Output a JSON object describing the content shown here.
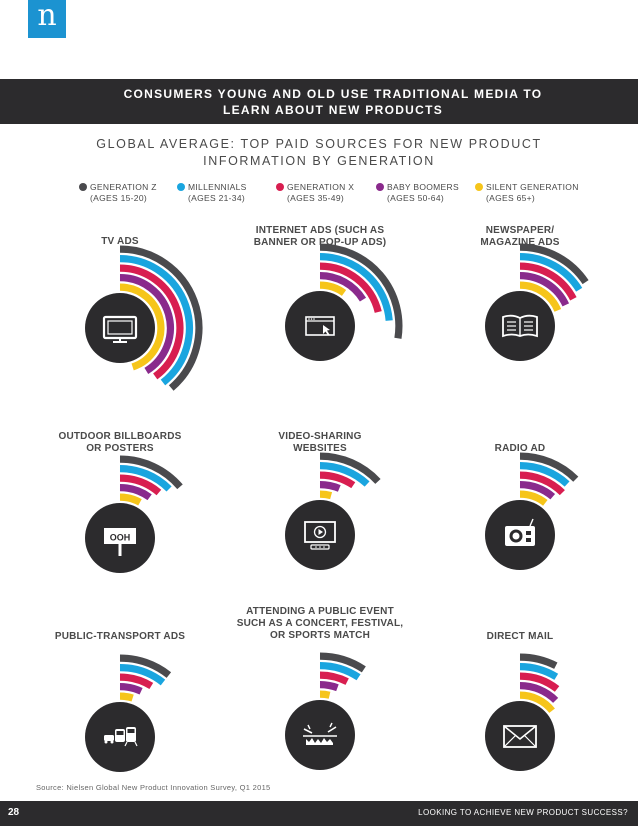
{
  "logo": "n",
  "title_lines": [
    "CONSUMERS YOUNG AND OLD USE TRADITIONAL MEDIA TO",
    "LEARN ABOUT NEW PRODUCTS"
  ],
  "subtitle_lines": [
    "GLOBAL AVERAGE: TOP PAID SOURCES FOR NEW PRODUCT",
    "INFORMATION BY GENERATION"
  ],
  "legend": [
    {
      "line1": "GENERATION Z",
      "line2": "(AGES 15-20)",
      "color": "#4a4a4d"
    },
    {
      "line1": "MILLENNIALS",
      "line2": "(AGES 21-34)",
      "color": "#1aa5df"
    },
    {
      "line1": "GENERATION X",
      "line2": "(AGES 35-49)",
      "color": "#d81e50"
    },
    {
      "line1": "BABY BOOMERS",
      "line2": "(AGES 50-64)",
      "color": "#8a2a8c"
    },
    {
      "line1": "SILENT GENERATION",
      "line2": "(AGES 65+)",
      "color": "#f6c51a"
    }
  ],
  "chart_data": {
    "type": "radial-bar",
    "series": [
      "GENERATION Z (AGES 15-20)",
      "MILLENNIALS (AGES 21-34)",
      "GENERATION X (AGES 35-49)",
      "BABY BOOMERS (AGES 50-64)",
      "SILENT GENERATION (AGES 65+)"
    ],
    "categories": [
      {
        "label": [
          "TV ADS"
        ],
        "icon": "tv-icon",
        "values": [
          0.62,
          0.63,
          0.64,
          0.66,
          0.72
        ]
      },
      {
        "label": [
          "INTERNET ADS (SUCH AS",
          "BANNER OR POP-UP ADS)"
        ],
        "icon": "browser-icon",
        "values": [
          0.44,
          0.38,
          0.34,
          0.26,
          0.16
        ]
      },
      {
        "label": [
          "NEWSPAPER/",
          "MAGAZINE ADS"
        ],
        "icon": "newspaper-icon",
        "values": [
          0.25,
          0.26,
          0.28,
          0.29,
          0.3
        ]
      },
      {
        "label": [
          "OUTDOOR BILLBOARDS",
          "OR POSTERS"
        ],
        "icon": "billboard-icon",
        "values": [
          0.22,
          0.2,
          0.18,
          0.16,
          0.13
        ]
      },
      {
        "label": [
          "VIDEO-SHARING",
          "WEBSITES"
        ],
        "icon": "video-icon",
        "values": [
          0.21,
          0.19,
          0.15,
          0.1,
          0.07
        ]
      },
      {
        "label": [
          "RADIO AD"
        ],
        "icon": "radio-icon",
        "values": [
          0.2,
          0.19,
          0.2,
          0.18,
          0.17
        ]
      },
      {
        "label": [
          "PUBLIC-TRANSPORT ADS"
        ],
        "icon": "transport-icon",
        "values": [
          0.17,
          0.17,
          0.14,
          0.11,
          0.08
        ]
      },
      {
        "label": [
          "ATTENDING A PUBLIC EVENT",
          "SUCH AS A CONCERT, FESTIVAL,",
          "OR SPORTS MATCH"
        ],
        "icon": "event-icon",
        "values": [
          0.15,
          0.15,
          0.12,
          0.09,
          0.06
        ]
      },
      {
        "label": [
          "DIRECT MAIL"
        ],
        "icon": "mail-icon",
        "values": [
          0.12,
          0.14,
          0.17,
          0.2,
          0.23
        ]
      }
    ],
    "icon_text": {
      "billboard": "OOH"
    }
  },
  "source": "Source: Nielsen Global New Product Innovation Survey, Q1 2015",
  "footer": {
    "page": "28",
    "text": "LOOKING TO ACHIEVE NEW PRODUCT SUCCESS?"
  }
}
